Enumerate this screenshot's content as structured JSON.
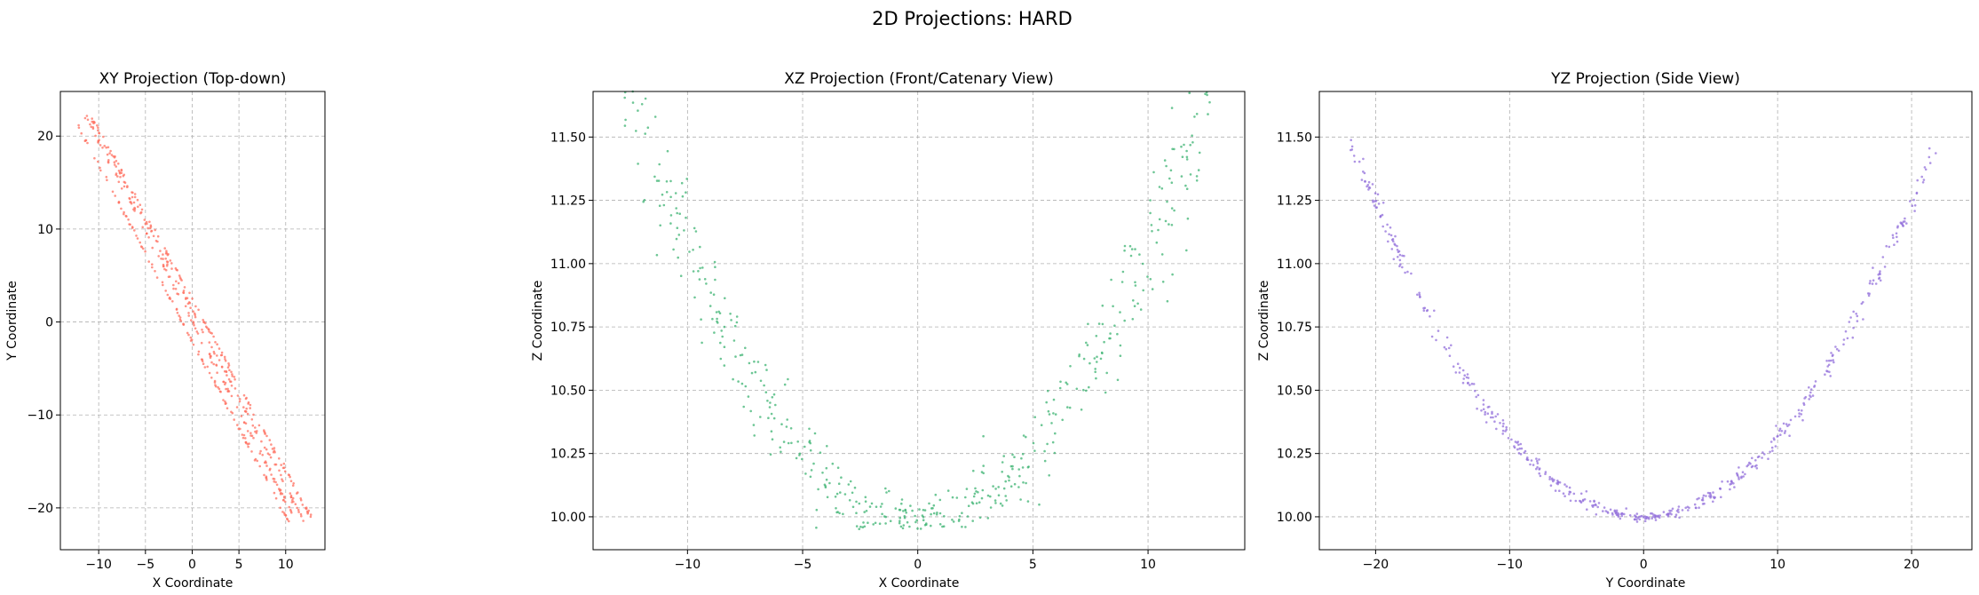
{
  "figure": {
    "title": "2D Projections: HARD"
  },
  "chart_data": [
    {
      "type": "scatter",
      "title": "XY Projection (Top-down)",
      "xlabel": "X Coordinate",
      "ylabel": "Y Coordinate",
      "xlim": [
        -14.1,
        14.2
      ],
      "ylim": [
        -24.5,
        24.8
      ],
      "xticks": [
        -10,
        -5,
        0,
        5,
        10
      ],
      "yticks": [
        -20,
        -10,
        0,
        10,
        20
      ],
      "xtick_labels": [
        "−10",
        "−5",
        "0",
        "5",
        "10"
      ],
      "ytick_labels": [
        "−20",
        "−10",
        "0",
        "10",
        "20"
      ],
      "grid": true,
      "color": "#ff7060",
      "lines": [
        {
          "x0": -12.4,
          "y0": 21.4,
          "x1": 10.4,
          "y1": -21.6
        },
        {
          "x0": -11.4,
          "y0": 22.2,
          "x1": 11.3,
          "y1": -21.8
        },
        {
          "x0": -10.9,
          "y0": 22.1,
          "x1": 12.0,
          "y1": -21.5
        },
        {
          "x0": -10.4,
          "y0": 21.5,
          "x1": 12.8,
          "y1": -21.2
        }
      ],
      "points_per_line": 125,
      "jitter": 0.25
    },
    {
      "type": "scatter",
      "title": "XZ Projection (Front/Catenary View)",
      "xlabel": "X Coordinate",
      "ylabel": "Z Coordinate",
      "xlim": [
        -14.1,
        14.2
      ],
      "ylim": [
        9.87,
        11.68
      ],
      "xticks": [
        -10,
        -5,
        0,
        5,
        10
      ],
      "yticks": [
        10.0,
        10.25,
        10.5,
        10.75,
        11.0,
        11.25,
        11.5
      ],
      "xtick_labels": [
        "−10",
        "−5",
        "0",
        "5",
        "10"
      ],
      "ytick_labels": [
        "10.00",
        "10.25",
        "10.50",
        "10.75",
        "11.00",
        "11.25",
        "11.50"
      ],
      "grid": true,
      "color": "#3cb371",
      "curve": {
        "z0": 10.0,
        "a": 0.0106,
        "x_range": [
          -12.8,
          12.8
        ]
      },
      "n_points": 500,
      "noise": 0.12
    },
    {
      "type": "scatter",
      "title": "YZ Projection (Side View)",
      "xlabel": "Y Coordinate",
      "ylabel": "Z Coordinate",
      "xlim": [
        -24.2,
        24.5
      ],
      "ylim": [
        9.87,
        11.68
      ],
      "xticks": [
        -20,
        -10,
        0,
        10,
        20
      ],
      "yticks": [
        10.0,
        10.25,
        10.5,
        10.75,
        11.0,
        11.25,
        11.5
      ],
      "xtick_labels": [
        "−20",
        "−10",
        "0",
        "10",
        "20"
      ],
      "ytick_labels": [
        "10.00",
        "10.25",
        "10.50",
        "10.75",
        "11.00",
        "11.25",
        "11.50"
      ],
      "grid": true,
      "color": "#9370db",
      "curve": {
        "z0": 10.0,
        "a": 0.0031,
        "x_range": [
          -22.0,
          22.0
        ]
      },
      "n_points": 500,
      "noise": 0.025
    }
  ]
}
